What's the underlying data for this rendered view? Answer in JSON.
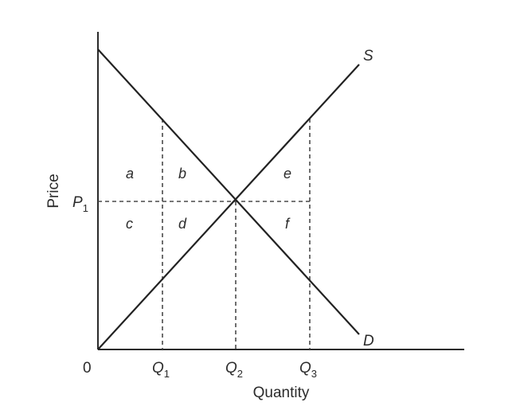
{
  "diagram": {
    "axes": {
      "y_label": "Price",
      "x_label": "Quantity",
      "origin_label": "0"
    },
    "price_labels": {
      "p1_main": "P",
      "p1_sub": "1"
    },
    "quantity_labels": [
      {
        "main": "Q",
        "sub": "1"
      },
      {
        "main": "Q",
        "sub": "2"
      },
      {
        "main": "Q",
        "sub": "3"
      }
    ],
    "curves": {
      "supply": "S",
      "demand": "D"
    },
    "regions": {
      "a": "a",
      "b": "b",
      "c": "c",
      "d": "d",
      "e": "e",
      "f": "f"
    },
    "colors": {
      "line": "#222222",
      "text": "#2b2b2b",
      "dashed": "#4a4a4a"
    }
  }
}
